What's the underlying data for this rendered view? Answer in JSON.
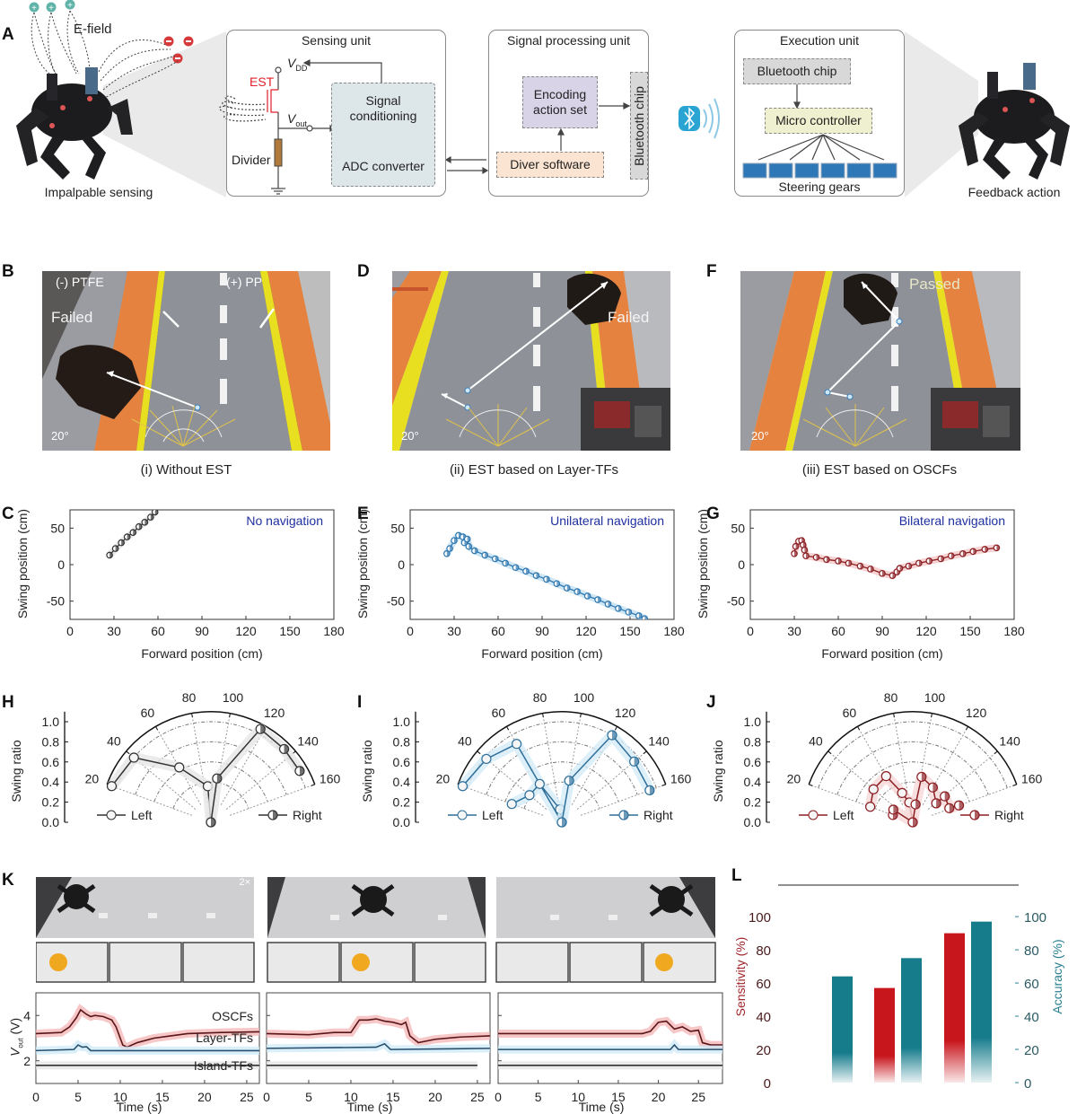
{
  "panel_labels": {
    "A": "A",
    "B": "B",
    "C": "C",
    "D": "D",
    "E": "E",
    "F": "F",
    "G": "G",
    "H": "H",
    "I": "I",
    "J": "J",
    "K": "K",
    "L": "L"
  },
  "panelA": {
    "efield": "E-field",
    "left_caption": "Impalpable sensing",
    "right_caption": "Feedback action",
    "sensing": {
      "title": "Sensing unit",
      "vdd": "V",
      "vdd_sub": "DD",
      "vout": "V",
      "vout_sub": "out",
      "est": "EST",
      "divider": "Divider",
      "signal_conditioning": "Signal conditioning",
      "adc": "ADC converter"
    },
    "processing": {
      "title": "Signal processing unit",
      "encoding": "Encoding action set",
      "driver": "Diver software",
      "bluetooth": "Bluetooth chip"
    },
    "execution": {
      "title": "Execution unit",
      "bluetooth": "Bluetooth chip",
      "micro": "Micro controller",
      "gears": "Steering gears"
    },
    "colors": {
      "est": "#e0202a",
      "encoding": "#d9d3e8",
      "driver": "#fbe4d2",
      "micro": "#eef0cf",
      "chip": "#d8d8d8",
      "conditioning": "#dde6e9",
      "bluetooth_icon": "#2aa5d3"
    }
  },
  "photos": [
    {
      "caption": "(i) Without EST",
      "neg_label": "(-) PTFE",
      "pos_label": "(+) PP",
      "status": "Failed",
      "angle": "20°"
    },
    {
      "caption": "(ii) EST based on Layer-TFs",
      "status": "Failed",
      "angle": "20°"
    },
    {
      "caption": "(iii) EST based on OSCFs",
      "status": "Passed",
      "angle": "20°"
    }
  ],
  "k_photos": {
    "speed": "2×"
  },
  "chart_data": [
    {
      "id": "C",
      "type": "line",
      "annotation": "No navigation",
      "annotation_color": "#1f2fa0",
      "color": "#333333",
      "fill": "#e8e8e8",
      "xlabel": "Forward position (cm)",
      "ylabel": "Swing position (cm)",
      "xlim": [
        0,
        180
      ],
      "ylim": [
        -75,
        75
      ],
      "xticks": [
        0,
        30,
        60,
        90,
        120,
        150,
        180
      ],
      "yticks": [
        -50,
        0,
        50
      ],
      "x": [
        27,
        31,
        35,
        39,
        43,
        47,
        51,
        55,
        58
      ],
      "y": [
        13,
        22,
        30,
        38,
        44,
        52,
        58,
        65,
        72
      ]
    },
    {
      "id": "E",
      "type": "line",
      "annotation": "Unilateral navigation",
      "annotation_color": "#1f2fa0",
      "color": "#2f78b0",
      "fill": "#cfe7f5",
      "xlabel": "Forward position (cm)",
      "ylabel": "Swing position (cm)",
      "xlim": [
        0,
        180
      ],
      "ylim": [
        -75,
        75
      ],
      "xticks": [
        0,
        30,
        60,
        90,
        120,
        150,
        180
      ],
      "yticks": [
        -50,
        0,
        50
      ],
      "x": [
        25,
        27,
        30,
        33,
        36,
        37,
        39,
        40,
        44,
        51,
        58,
        65,
        72,
        79,
        86,
        93,
        100,
        107,
        114,
        121,
        128,
        135,
        142,
        149,
        156,
        160
      ],
      "y": [
        15,
        22,
        33,
        40,
        38,
        30,
        35,
        25,
        19,
        13,
        8,
        2,
        -4,
        -9,
        -15,
        -20,
        -26,
        -32,
        -37,
        -43,
        -48,
        -54,
        -60,
        -65,
        -70,
        -74
      ]
    },
    {
      "id": "G",
      "type": "line",
      "annotation": "Bilateral navigation",
      "annotation_color": "#1f2fa0",
      "color": "#8b1e22",
      "fill": "#f6d2d2",
      "xlabel": "Forward position (cm)",
      "ylabel": "Swing position (cm)",
      "xlim": [
        0,
        180
      ],
      "ylim": [
        -75,
        75
      ],
      "xticks": [
        0,
        30,
        60,
        90,
        120,
        150,
        180
      ],
      "yticks": [
        -50,
        0,
        50
      ],
      "x": [
        30,
        31,
        33,
        35,
        36,
        37,
        38,
        45,
        52,
        60,
        67,
        75,
        82,
        90,
        97,
        100,
        102,
        108,
        115,
        122,
        130,
        137,
        145,
        152,
        160,
        168
      ],
      "y": [
        15,
        25,
        32,
        33,
        27,
        20,
        12,
        10,
        7,
        5,
        2,
        -2,
        -6,
        -12,
        -15,
        -10,
        -5,
        -2,
        2,
        5,
        8,
        12,
        15,
        18,
        21,
        23
      ]
    },
    {
      "id": "H",
      "type": "line",
      "coordinate": "polar",
      "ylabel": "Swing ratio",
      "angle_ticks": [
        20,
        40,
        60,
        80,
        100,
        120,
        140,
        160
      ],
      "r_ticks": [
        0.0,
        0.2,
        0.4,
        0.6,
        0.8,
        1.0
      ],
      "rlim": [
        0,
        1.1
      ],
      "color": "#333333",
      "fill": "#e6e6e6",
      "series": [
        {
          "name": "Left",
          "points": [
            [
              20,
              1.05
            ],
            [
              40,
              1.0
            ],
            [
              60,
              0.63
            ],
            [
              85,
              0.36
            ],
            [
              90,
              0.0
            ]
          ]
        },
        {
          "name": "Right",
          "points": [
            [
              90,
              0.0
            ],
            [
              98,
              0.44
            ],
            [
              118,
              1.05
            ],
            [
              135,
              1.03
            ],
            [
              150,
              1.02
            ]
          ]
        }
      ]
    },
    {
      "id": "I",
      "type": "line",
      "coordinate": "polar",
      "ylabel": "Swing ratio",
      "angle_ticks": [
        20,
        40,
        60,
        80,
        100,
        120,
        140,
        160
      ],
      "r_ticks": [
        0.0,
        0.2,
        0.4,
        0.6,
        0.8,
        1.0
      ],
      "rlim": [
        0,
        1.1
      ],
      "color": "#2f6f9a",
      "fill": "#d4ecf8",
      "series": [
        {
          "name": "Left",
          "points": [
            [
              20,
              1.05
            ],
            [
              40,
              0.98
            ],
            [
              60,
              0.9
            ],
            [
              90,
              0.0
            ],
            [
              82,
              0.13
            ],
            [
              60,
              0.44
            ],
            [
              40,
              0.42
            ],
            [
              20,
              0.53
            ]
          ]
        },
        {
          "name": "Right",
          "points": [
            [
              90,
              0.0
            ],
            [
              100,
              0.42
            ],
            [
              120,
              1.0
            ],
            [
              140,
              0.94
            ],
            [
              160,
              0.93
            ]
          ]
        }
      ]
    },
    {
      "id": "J",
      "type": "line",
      "coordinate": "polar",
      "ylabel": "Swing ratio",
      "angle_ticks": [
        20,
        40,
        60,
        80,
        100,
        120,
        140,
        160
      ],
      "r_ticks": [
        0.0,
        0.2,
        0.4,
        0.6,
        0.8,
        1.0
      ],
      "rlim": [
        0,
        1.1
      ],
      "color": "#8b1e22",
      "fill": "#f8d8d8",
      "series": [
        {
          "name": "Left",
          "points": [
            [
              20,
              0.45
            ],
            [
              40,
              0.51
            ],
            [
              60,
              0.53
            ],
            [
              70,
              0.31
            ],
            [
              80,
              0.2
            ],
            [
              90,
              0.0
            ]
          ]
        },
        {
          "name": "Right",
          "points": [
            [
              20,
              0.21
            ],
            [
              33,
              0.23
            ],
            [
              90,
              0.0
            ],
            [
              99,
              0.18
            ],
            [
              101,
              0.46
            ],
            [
              120,
              0.4
            ],
            [
              141,
              0.3
            ],
            [
              141,
              0.41
            ],
            [
              159,
              0.39
            ],
            [
              160,
              0.49
            ]
          ]
        }
      ]
    },
    {
      "id": "K1",
      "type": "line",
      "xlabel": "Time (s)",
      "ylabel": "V",
      "ylabel_sub": "out",
      "ylabel_unit": " (V)",
      "xlim": [
        0,
        26.5
      ],
      "ylim": [
        1,
        5
      ],
      "xticks": [
        0,
        5,
        10,
        15,
        20,
        25
      ],
      "yticks": [
        2,
        4
      ],
      "series": [
        {
          "name": "OSCFs",
          "color": "#5a1518",
          "band": "#f4b4b4",
          "points": [
            [
              0,
              3.2
            ],
            [
              3,
              3.25
            ],
            [
              4,
              3.5
            ],
            [
              4.8,
              3.9
            ],
            [
              5.3,
              4.25
            ],
            [
              6,
              4.05
            ],
            [
              6.5,
              3.95
            ],
            [
              7,
              4.0
            ],
            [
              8,
              3.95
            ],
            [
              9,
              3.8
            ],
            [
              9.5,
              3.5
            ],
            [
              10.3,
              2.7
            ],
            [
              10.8,
              2.6
            ],
            [
              12,
              2.8
            ],
            [
              14,
              3.0
            ],
            [
              16,
              3.1
            ],
            [
              18,
              3.2
            ],
            [
              22,
              3.25
            ],
            [
              26.5,
              3.28
            ]
          ]
        },
        {
          "name": "Layer-TFs",
          "color": "#27506e",
          "band": "#cde9f7",
          "points": [
            [
              0,
              2.45
            ],
            [
              4.5,
              2.5
            ],
            [
              5,
              2.7
            ],
            [
              5.5,
              2.6
            ],
            [
              6,
              2.62
            ],
            [
              6.5,
              2.45
            ],
            [
              26.5,
              2.45
            ]
          ]
        },
        {
          "name": "Island-TFs",
          "color": "#333333",
          "band": "#e4e4e4",
          "points": [
            [
              0,
              1.8
            ],
            [
              26.5,
              1.8
            ]
          ]
        }
      ]
    },
    {
      "id": "K2",
      "type": "line",
      "xlabel": "Time (s)",
      "xlim": [
        0,
        26.5
      ],
      "ylim": [
        1,
        5
      ],
      "xticks": [
        0,
        5,
        10,
        15,
        20,
        25
      ],
      "yticks": [
        2,
        4
      ],
      "series": [
        {
          "name": "OSCFs",
          "color": "#5a1518",
          "band": "#f4b4b4",
          "points": [
            [
              0,
              3.2
            ],
            [
              5,
              3.15
            ],
            [
              8,
              3.25
            ],
            [
              10,
              3.25
            ],
            [
              11,
              3.8
            ],
            [
              12,
              3.8
            ],
            [
              13,
              3.85
            ],
            [
              14,
              3.75
            ],
            [
              15,
              3.7
            ],
            [
              16,
              3.6
            ],
            [
              16.5,
              3.7
            ],
            [
              17,
              3.1
            ],
            [
              18,
              2.8
            ],
            [
              20,
              2.95
            ],
            [
              23,
              3.05
            ],
            [
              26.5,
              3.1
            ]
          ]
        },
        {
          "name": "Layer-TFs",
          "color": "#27506e",
          "band": "#cde9f7",
          "points": [
            [
              0,
              2.55
            ],
            [
              13,
              2.6
            ],
            [
              14,
              2.75
            ],
            [
              14.7,
              2.5
            ],
            [
              26.5,
              2.55
            ]
          ]
        },
        {
          "name": "Island-TFs",
          "color": "#333333",
          "band": "#e4e4e4",
          "points": [
            [
              0,
              1.8
            ],
            [
              25,
              1.8
            ]
          ]
        }
      ]
    },
    {
      "id": "K3",
      "type": "line",
      "xlabel": "Time (s)",
      "xlim": [
        0,
        28
      ],
      "ylim": [
        1,
        5
      ],
      "xticks": [
        0,
        5,
        10,
        15,
        20,
        25
      ],
      "yticks": [
        2,
        4
      ],
      "series": [
        {
          "name": "OSCFs",
          "color": "#5a1518",
          "band": "#f4b4b4",
          "points": [
            [
              0,
              3.2
            ],
            [
              18,
              3.2
            ],
            [
              19,
              3.3
            ],
            [
              20,
              3.7
            ],
            [
              21,
              3.75
            ],
            [
              22,
              3.4
            ],
            [
              23,
              3.5
            ],
            [
              24,
              3.3
            ],
            [
              25,
              3.35
            ],
            [
              25.5,
              2.8
            ],
            [
              26.5,
              2.7
            ],
            [
              28,
              2.7
            ]
          ]
        },
        {
          "name": "Layer-TFs",
          "color": "#27506e",
          "band": "#cde9f7",
          "points": [
            [
              0,
              2.5
            ],
            [
              21.5,
              2.5
            ],
            [
              22,
              2.7
            ],
            [
              22.5,
              2.5
            ],
            [
              28,
              2.5
            ]
          ]
        },
        {
          "name": "Island-TFs",
          "color": "#333333",
          "band": "#e4e4e4",
          "points": [
            [
              0,
              1.8
            ],
            [
              28,
              1.8
            ]
          ]
        }
      ]
    },
    {
      "id": "L",
      "type": "bar",
      "ylabel": "Sensitivity (%)",
      "y2label": "Accuracy (%)",
      "ylim": [
        0,
        119
      ],
      "yticks": [
        0,
        20,
        40,
        60,
        80,
        100
      ],
      "series": [
        {
          "name": "Sensitivity",
          "axis": "left",
          "color": "#c8161d",
          "values": [
            0,
            57,
            90
          ]
        },
        {
          "name": "Accuracy",
          "axis": "right",
          "color": "#167c8c",
          "values": [
            64,
            75,
            97
          ]
        }
      ],
      "ylabel_color": "#a0262b",
      "y2label_color": "#2a8090"
    }
  ]
}
